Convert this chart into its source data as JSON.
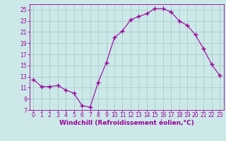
{
  "x": [
    0,
    1,
    2,
    3,
    4,
    5,
    6,
    7,
    8,
    9,
    10,
    11,
    12,
    13,
    14,
    15,
    16,
    17,
    18,
    19,
    20,
    21,
    22,
    23
  ],
  "y": [
    12.5,
    11.2,
    11.2,
    11.4,
    10.6,
    10.0,
    7.8,
    7.5,
    12.0,
    15.5,
    20.0,
    21.2,
    23.2,
    23.8,
    24.3,
    25.2,
    25.2,
    24.6,
    23.0,
    22.2,
    20.5,
    18.0,
    15.2,
    13.2
  ],
  "line_color": "#990099",
  "marker": "+",
  "marker_size": 4,
  "marker_lw": 1.0,
  "bg_color": "#cce8e8",
  "grid_color": "#aacccc",
  "xlabel": "Windchill (Refroidissement éolien,°C)",
  "xlim": [
    -0.5,
    23.5
  ],
  "ylim": [
    7,
    26
  ],
  "yticks": [
    7,
    9,
    11,
    13,
    15,
    17,
    19,
    21,
    23,
    25
  ],
  "xticks": [
    0,
    1,
    2,
    3,
    4,
    5,
    6,
    7,
    8,
    9,
    10,
    11,
    12,
    13,
    14,
    15,
    16,
    17,
    18,
    19,
    20,
    21,
    22,
    23
  ],
  "tick_color": "#990099",
  "label_color": "#990099",
  "spine_color": "#990099",
  "tick_fontsize": 5.5,
  "xlabel_fontsize": 6.5
}
